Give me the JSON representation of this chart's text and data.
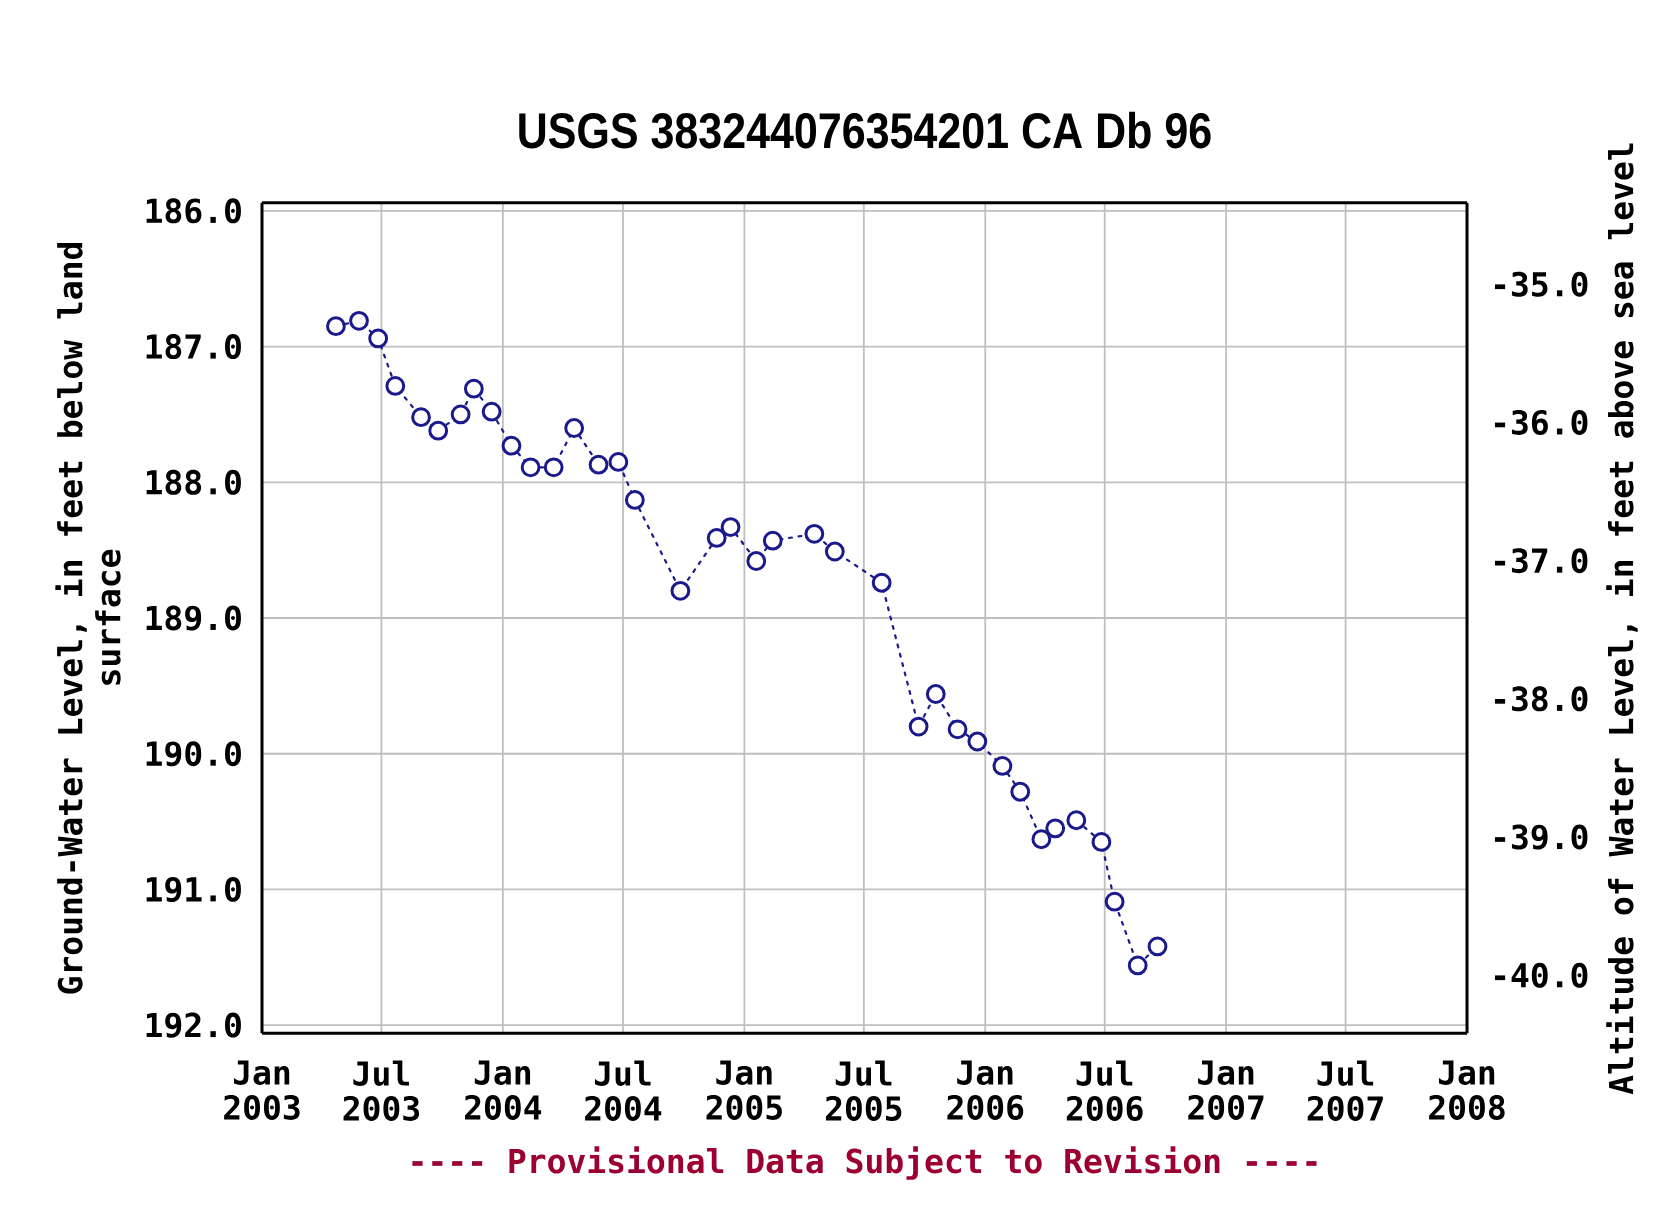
{
  "chart_data": {
    "type": "line",
    "title": "USGS 383244076354201 CA Db 96",
    "ylabel": "Ground-Water Level, in feet below land surface",
    "y2label": "Altitude of Water Level, in feet above sea level",
    "annotations": [
      "---- Provisional Data Subject to Revision ----"
    ],
    "x": [
      "2003-04-23",
      "2003-05-28",
      "2003-06-26",
      "2003-07-22",
      "2003-08-30",
      "2003-09-25",
      "2003-10-29",
      "2003-11-18",
      "2003-12-15",
      "2004-01-14",
      "2004-02-12",
      "2004-03-18",
      "2004-04-18",
      "2004-05-25",
      "2004-06-24",
      "2004-07-19",
      "2004-09-26",
      "2004-11-20",
      "2004-12-11",
      "2005-01-19",
      "2005-02-13",
      "2005-04-17",
      "2005-05-18",
      "2005-07-28",
      "2005-09-22",
      "2005-10-18",
      "2005-11-20",
      "2005-12-20",
      "2006-01-27",
      "2006-02-23",
      "2006-03-27",
      "2006-04-17",
      "2006-05-19",
      "2006-06-26",
      "2006-07-16",
      "2006-08-20",
      "2006-09-19"
    ],
    "values": [
      186.85,
      186.81,
      186.94,
      187.29,
      187.52,
      187.62,
      187.5,
      187.31,
      187.48,
      187.73,
      187.89,
      187.89,
      187.6,
      187.87,
      187.85,
      188.13,
      188.8,
      188.41,
      188.33,
      188.58,
      188.43,
      188.38,
      188.51,
      188.74,
      189.8,
      189.56,
      189.82,
      189.91,
      190.09,
      190.28,
      190.63,
      190.55,
      190.49,
      190.65,
      191.09,
      191.56,
      191.42
    ],
    "color": "#1a1a8c",
    "marker": "circle",
    "line_style": "dotted",
    "grid": true,
    "xlim": [
      "2003-01",
      "2008-01"
    ],
    "xticks": [
      {
        "value": "2003-01",
        "label": "Jan 2003"
      },
      {
        "value": "2003-07",
        "label": "Jul 2003"
      },
      {
        "value": "2004-01",
        "label": "Jan 2004"
      },
      {
        "value": "2004-07",
        "label": "Jul 2004"
      },
      {
        "value": "2005-01",
        "label": "Jan 2005"
      },
      {
        "value": "2005-07",
        "label": "Jul 2005"
      },
      {
        "value": "2006-01",
        "label": "Jan 2006"
      },
      {
        "value": "2006-07",
        "label": "Jul 2006"
      },
      {
        "value": "2007-01",
        "label": "Jan 2007"
      },
      {
        "value": "2007-07",
        "label": "Jul 2007"
      },
      {
        "value": "2008-01",
        "label": "Jan 2008"
      }
    ],
    "ylim": [
      192.06,
      185.94
    ],
    "yticks": [
      {
        "value": 186,
        "label": "186.0"
      },
      {
        "value": 187,
        "label": "187.0"
      },
      {
        "value": 188,
        "label": "188.0"
      },
      {
        "value": 189,
        "label": "189.0"
      },
      {
        "value": 190,
        "label": "190.0"
      },
      {
        "value": 191,
        "label": "191.0"
      },
      {
        "value": 192,
        "label": "192.0"
      }
    ],
    "y2lim": [
      -40.42,
      -34.41
    ],
    "y2ticks": [
      {
        "value": -35,
        "label": "-35.0"
      },
      {
        "value": -36,
        "label": "-36.0"
      },
      {
        "value": -37,
        "label": "-37.0"
      },
      {
        "value": -38,
        "label": "-38.0"
      },
      {
        "value": -39,
        "label": "-39.0"
      },
      {
        "value": -40,
        "label": "-40.0"
      }
    ]
  }
}
